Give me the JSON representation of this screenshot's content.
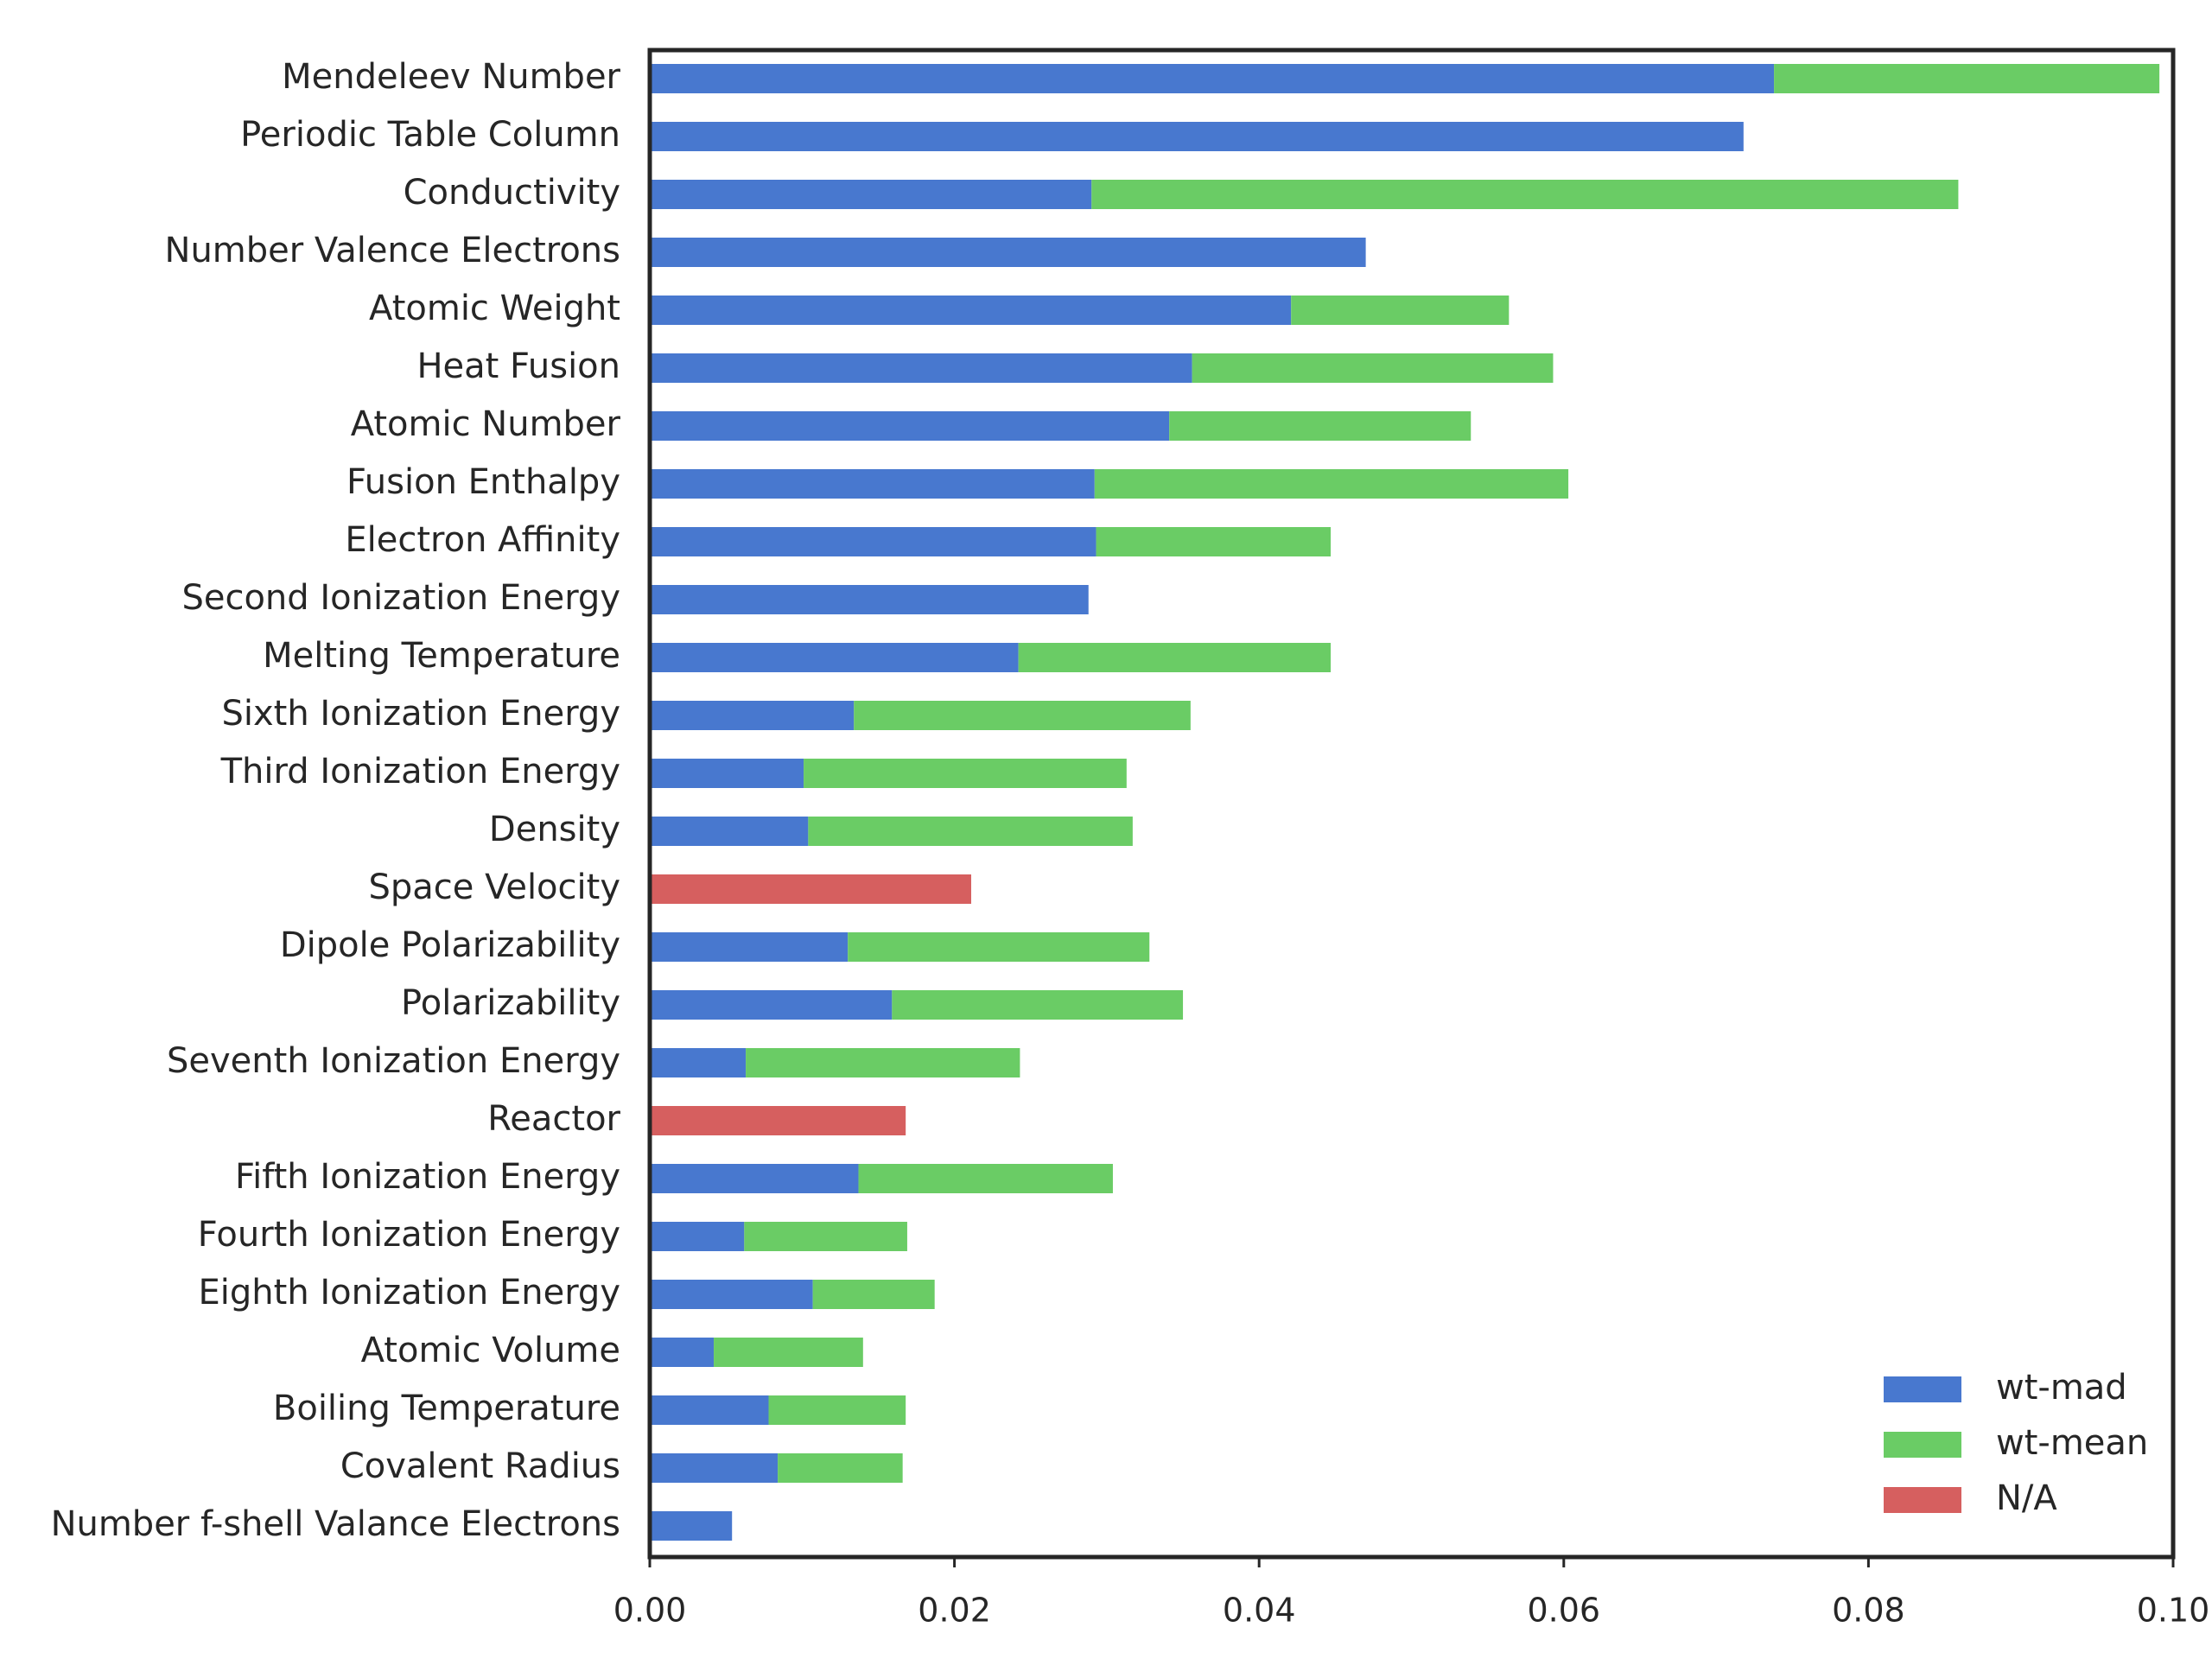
{
  "chart_data": {
    "type": "bar",
    "orientation": "horizontal",
    "stacked": true,
    "title": "",
    "xlabel": "",
    "ylabel": "",
    "xlim": [
      0.0,
      0.1
    ],
    "xticks": [
      "0.00",
      "0.02",
      "0.04",
      "0.06",
      "0.08",
      "0.10"
    ],
    "grid": false,
    "legend_position": "bottom-right",
    "colors": {
      "wt-mad": "#4878cf",
      "wt-mean": "#6acc65",
      "N/A": "#d65f5f"
    },
    "legend": [
      "wt-mad",
      "wt-mean",
      "N/A"
    ],
    "categories": [
      "Mendeleev Number",
      "Periodic Table Column",
      "Conductivity",
      "Number Valence Electrons",
      "Atomic Weight",
      "Heat Fusion",
      "Atomic Number",
      "Fusion Enthalpy",
      "Electron Affinity",
      "Second Ionization Energy",
      "Melting Temperature",
      "Sixth Ionization Energy",
      "Third Ionization Energy",
      "Density",
      "Space Velocity",
      "Dipole Polarizability",
      "Polarizability",
      "Seventh Ionization Energy",
      "Reactor",
      "Fifth Ionization Energy",
      "Fourth Ionization Energy",
      "Eighth Ionization Energy",
      "Atomic Volume",
      "Boiling Temperature",
      "Covalent Radius",
      "Number f-shell Valance Electrons"
    ],
    "series": [
      {
        "name": "wt-mad",
        "values": [
          0.0738,
          0.0718,
          0.029,
          0.047,
          0.0421,
          0.0356,
          0.0341,
          0.0292,
          0.0293,
          0.0288,
          0.0242,
          0.0134,
          0.0101,
          0.0104,
          0,
          0.013,
          0.0159,
          0.0063,
          0,
          0.0137,
          0.0062,
          0.0107,
          0.0042,
          0.0078,
          0.0084,
          0.0054
        ]
      },
      {
        "name": "wt-mean",
        "values": [
          0.0253,
          0,
          0.0569,
          0,
          0.0143,
          0.0237,
          0.0198,
          0.0311,
          0.0154,
          0,
          0.0205,
          0.0221,
          0.0212,
          0.0213,
          0,
          0.0198,
          0.0191,
          0.018,
          0,
          0.0167,
          0.0107,
          0.008,
          0.0098,
          0.009,
          0.0082,
          0
        ]
      },
      {
        "name": "N/A",
        "values": [
          0,
          0,
          0,
          0,
          0,
          0,
          0,
          0,
          0,
          0,
          0,
          0,
          0,
          0,
          0.0211,
          0,
          0,
          0,
          0.0168,
          0,
          0,
          0,
          0,
          0,
          0,
          0
        ]
      }
    ]
  }
}
